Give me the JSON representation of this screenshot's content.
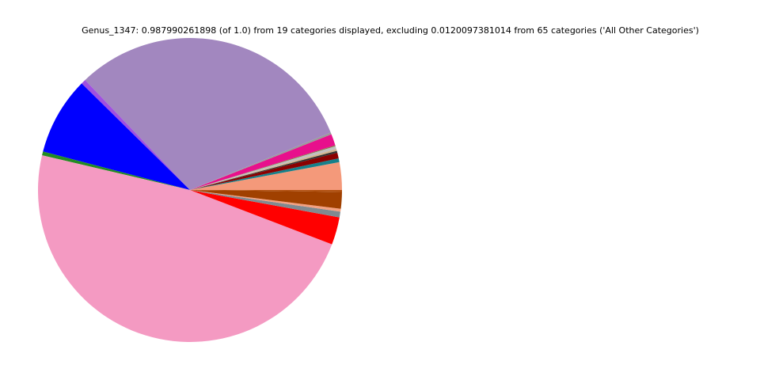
{
  "chart_data": {
    "type": "pie",
    "title": "Genus_1347: 0.987990261898 (of 1.0) from 19 categories displayed, excluding 0.0120097381014 from 65 categories ('All Other Categories')",
    "values": [
      0.029,
      0.004,
      0.006,
      0.002,
      0.002,
      0.003,
      0.001,
      0.012,
      0.002,
      0.306,
      0.005,
      0.082,
      0.004,
      0.473,
      0.029,
      0.006,
      0.003,
      0.0175,
      0.002
    ],
    "colors": [
      "#f4997a",
      "#16808a",
      "#8b0000",
      "#333333",
      "#d2b48c",
      "#c0c0c0",
      "#808040",
      "#e8108c",
      "#999999",
      "#a287bf",
      "#a050e0",
      "#0000ff",
      "#228b22",
      "#f49ac2",
      "#ff0000",
      "#808a90",
      "#f4a080",
      "#a04000",
      "#b05010"
    ]
  }
}
